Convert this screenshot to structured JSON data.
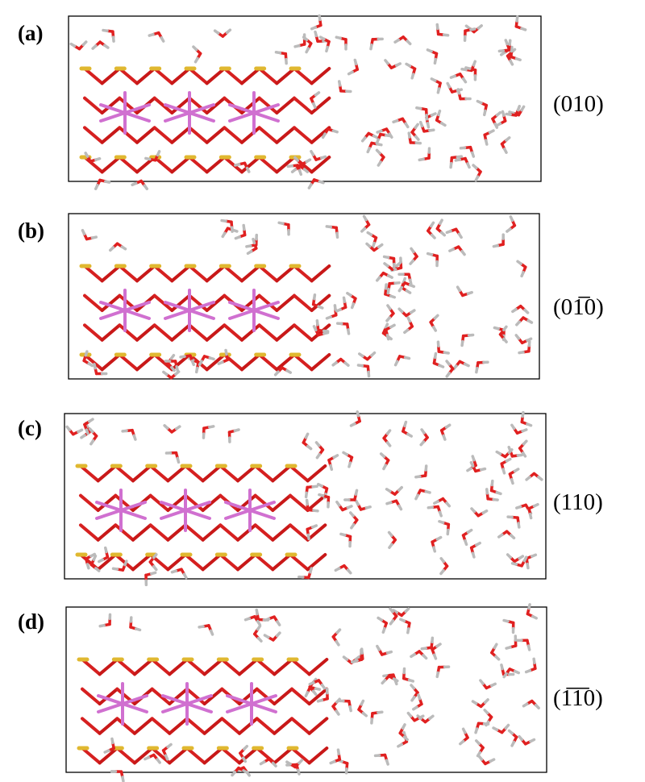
{
  "panels": [
    {
      "label": "(a)",
      "surface": "(010)"
    },
    {
      "label": "(b)",
      "surface": "(01̅0)"
    },
    {
      "label": "(c)",
      "surface": "(110)"
    },
    {
      "label": "(d)",
      "surface": "(1̅1̅0)"
    }
  ]
}
